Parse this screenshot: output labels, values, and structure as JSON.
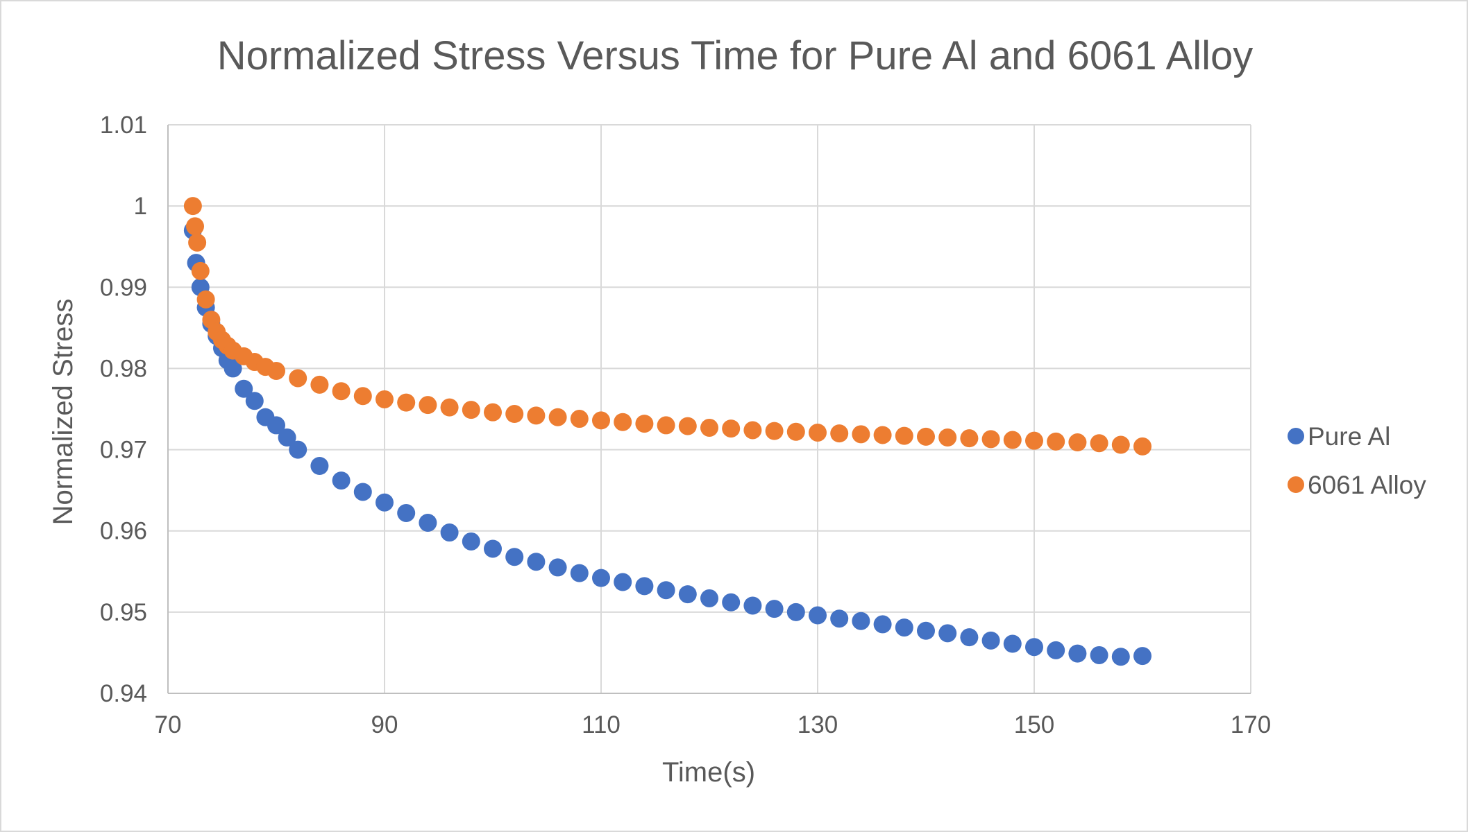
{
  "chart_data": {
    "type": "scatter",
    "title": "Normalized Stress Versus Time for Pure Al and 6061 Alloy",
    "xlabel": "Time(s)",
    "ylabel": "Normalized Stress",
    "xlim": [
      70,
      170
    ],
    "ylim": [
      0.94,
      1.01
    ],
    "xticks": [
      70,
      90,
      110,
      130,
      150,
      170
    ],
    "yticks": [
      0.94,
      0.95,
      0.96,
      0.97,
      0.98,
      0.99,
      1,
      1.01
    ],
    "xtick_labels": [
      "70",
      "90",
      "110",
      "130",
      "150",
      "170"
    ],
    "ytick_labels": [
      "0.94",
      "0.95",
      "0.96",
      "0.97",
      "0.98",
      "0.99",
      "1",
      "1.01"
    ],
    "grid": true,
    "legend_position": "right",
    "series": [
      {
        "name": "Pure Al",
        "color": "#4472C4",
        "x": [
          72.3,
          72.6,
          73,
          73.5,
          74,
          74.5,
          75,
          75.5,
          76,
          77,
          78,
          79,
          80,
          81,
          82,
          84,
          86,
          88,
          90,
          92,
          94,
          96,
          98,
          100,
          102,
          104,
          106,
          108,
          110,
          112,
          114,
          116,
          118,
          120,
          122,
          124,
          126,
          128,
          130,
          132,
          134,
          136,
          138,
          140,
          142,
          144,
          146,
          148,
          150,
          152,
          154,
          156,
          158,
          160
        ],
        "y": [
          0.997,
          0.993,
          0.99,
          0.9875,
          0.9855,
          0.984,
          0.9825,
          0.981,
          0.98,
          0.9775,
          0.976,
          0.974,
          0.973,
          0.9715,
          0.97,
          0.968,
          0.9662,
          0.9648,
          0.9635,
          0.9622,
          0.961,
          0.9598,
          0.9587,
          0.9578,
          0.9568,
          0.9562,
          0.9555,
          0.9548,
          0.9542,
          0.9537,
          0.9532,
          0.9527,
          0.9522,
          0.9517,
          0.9512,
          0.9508,
          0.9504,
          0.95,
          0.9496,
          0.9492,
          0.9489,
          0.9485,
          0.9481,
          0.9477,
          0.9474,
          0.9469,
          0.9465,
          0.9461,
          0.9457,
          0.9453,
          0.9449,
          0.9447,
          0.9445,
          0.9446
        ]
      },
      {
        "name": "6061 Alloy",
        "color": "#ED7D31",
        "x": [
          72.3,
          72.5,
          72.7,
          73,
          73.5,
          74,
          74.5,
          75,
          75.5,
          76,
          77,
          78,
          79,
          80,
          82,
          84,
          86,
          88,
          90,
          92,
          94,
          96,
          98,
          100,
          102,
          104,
          106,
          108,
          110,
          112,
          114,
          116,
          118,
          120,
          122,
          124,
          126,
          128,
          130,
          132,
          134,
          136,
          138,
          140,
          142,
          144,
          146,
          148,
          150,
          152,
          154,
          156,
          158,
          160
        ],
        "y": [
          1.0,
          0.9975,
          0.9955,
          0.992,
          0.9885,
          0.986,
          0.9845,
          0.9835,
          0.9828,
          0.9822,
          0.9815,
          0.9808,
          0.9802,
          0.9797,
          0.9788,
          0.978,
          0.9772,
          0.9766,
          0.9762,
          0.9758,
          0.9755,
          0.9752,
          0.9749,
          0.9746,
          0.9744,
          0.9742,
          0.974,
          0.9738,
          0.9736,
          0.9734,
          0.9732,
          0.973,
          0.9729,
          0.9727,
          0.9726,
          0.9724,
          0.9723,
          0.9722,
          0.9721,
          0.972,
          0.9719,
          0.9718,
          0.9717,
          0.9716,
          0.9715,
          0.9714,
          0.9713,
          0.9712,
          0.9711,
          0.971,
          0.9709,
          0.9708,
          0.9706,
          0.9704
        ]
      }
    ]
  }
}
